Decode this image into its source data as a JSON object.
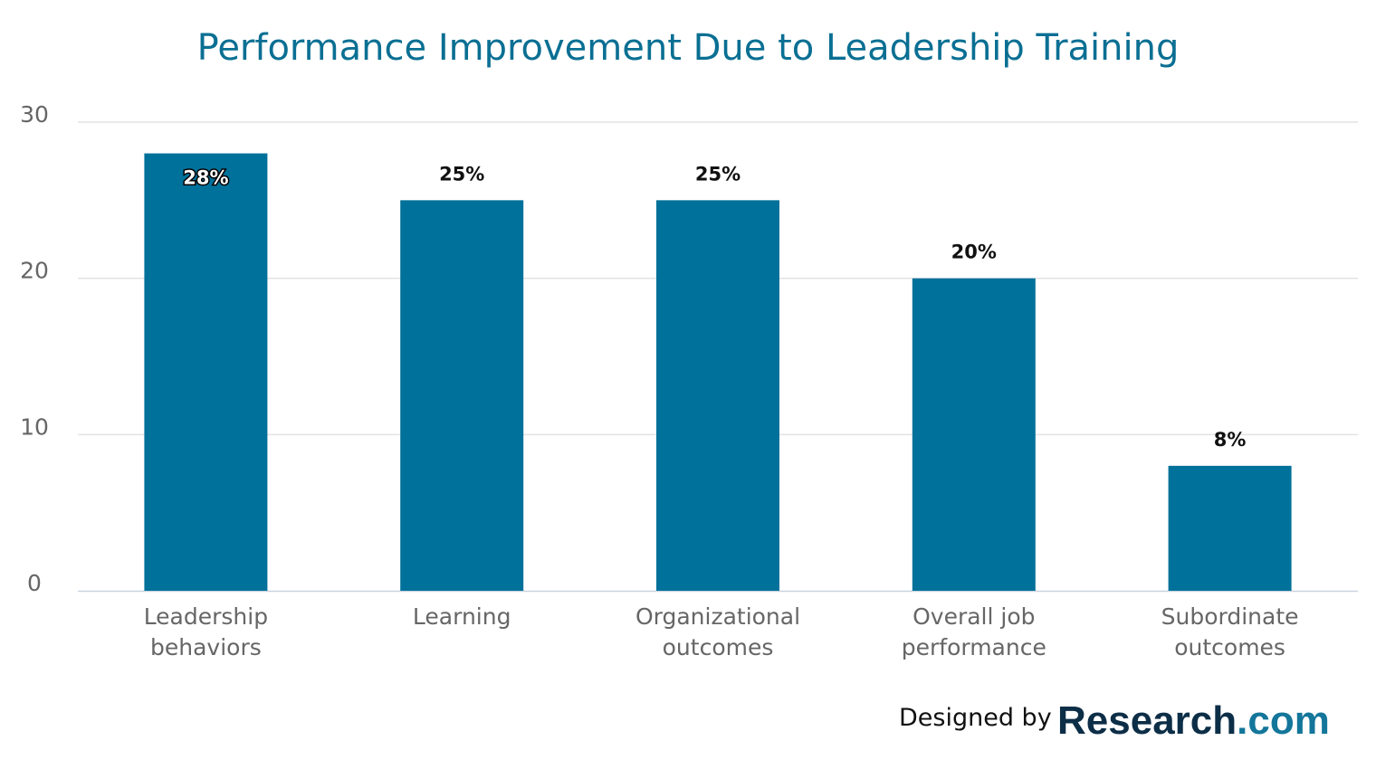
{
  "chart_data": {
    "type": "bar",
    "title": "Performance Improvement Due to Leadership Training",
    "categories": [
      [
        "Leadership",
        "behaviors"
      ],
      [
        "Learning"
      ],
      [
        "Organizational",
        "outcomes"
      ],
      [
        "Overall job",
        "performance"
      ],
      [
        "Subordinate",
        "outcomes"
      ]
    ],
    "values": [
      28,
      25,
      25,
      20,
      8
    ],
    "data_labels": [
      "28%",
      "25%",
      "25%",
      "20%",
      "8%"
    ],
    "xlabel": "",
    "ylabel": "",
    "ylim": [
      0,
      30
    ],
    "yticks": [
      0,
      10,
      20,
      30
    ],
    "grid": true,
    "bar_color": "#00719a"
  },
  "footer": {
    "credit": "Designed by",
    "logo_main": "Research",
    "logo_suffix": ".com"
  }
}
